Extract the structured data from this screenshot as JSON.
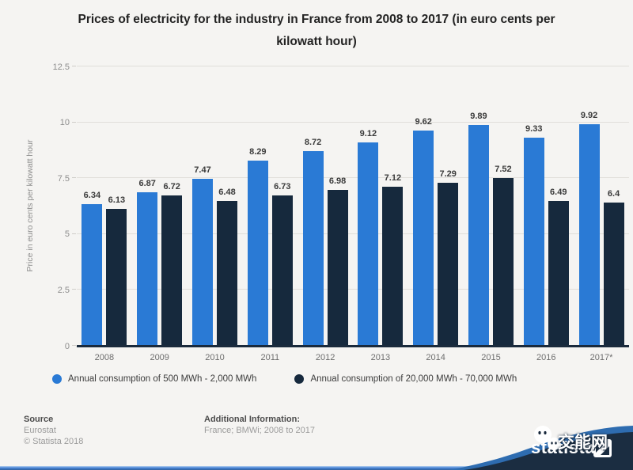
{
  "title": "Prices of electricity for the industry in France from 2008 to 2017 (in euro cents per kilowatt hour)",
  "chart_data": {
    "type": "bar",
    "title": "Prices of electricity for the industry in France from 2008 to 2017 (in euro cents per kilowatt hour)",
    "categories": [
      "2008",
      "2009",
      "2010",
      "2011",
      "2012",
      "2013",
      "2014",
      "2015",
      "2016",
      "2017*"
    ],
    "series": [
      {
        "name": "Annual consumption of 500 MWh - 2,000 MWh",
        "color": "#2a7ad5",
        "values": [
          6.34,
          6.87,
          7.47,
          8.29,
          8.72,
          9.12,
          9.62,
          9.89,
          9.33,
          9.92
        ]
      },
      {
        "name": "Annual consumption of 20,000 MWh - 70,000 MWh",
        "color": "#16293d",
        "values": [
          6.13,
          6.72,
          6.48,
          6.73,
          6.98,
          7.12,
          7.29,
          7.52,
          6.49,
          6.4
        ]
      }
    ],
    "xlabel": "",
    "ylabel": "Price in euro cents per kilowatt hour",
    "ylim": [
      0,
      12.5
    ],
    "yticks": [
      "0",
      "2.5",
      "5",
      "7.5",
      "10",
      "12.5"
    ],
    "grid": true,
    "legend_position": "bottom"
  },
  "footer": {
    "source_label": "Source",
    "source_line1": "Eurostat",
    "source_line2": "© Statista 2018",
    "additional_label": "Additional Information:",
    "additional_text": "France; BMWi; 2008 to 2017"
  },
  "branding": {
    "logo_text": "statista",
    "watermark_text": "交能网"
  },
  "colors": {
    "background": "#f5f4f2",
    "gridline": "#e0deda",
    "axis_line": "#1a2a3c",
    "tick_label": "#8d8d8d",
    "value_label": "#3b3b3b",
    "banner_navy": "#1b2d41",
    "banner_blue": "#2e6cb0",
    "bottom_bar_blue": "#4a86d8"
  }
}
